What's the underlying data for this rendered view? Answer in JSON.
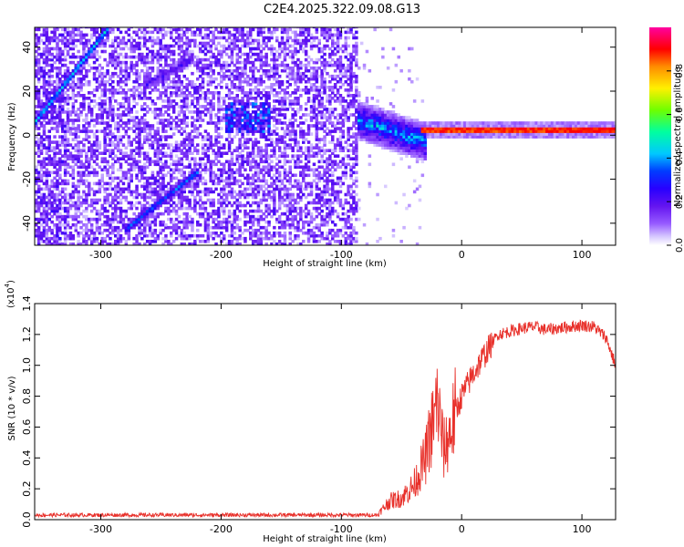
{
  "title": "C2E4.2025.322.09.08.G13",
  "chart_data": [
    {
      "type": "heatmap",
      "title": "C2E4.2025.322.09.08.G13",
      "xlabel": "Height of straight line (km)",
      "ylabel": "Frequency (Hz)",
      "xlim": [
        -355,
        128
      ],
      "ylim": [
        -50,
        49
      ],
      "xticks": [
        -300,
        -200,
        -100,
        0,
        100
      ],
      "xticklabels": [
        "-300",
        "-200",
        "-100",
        "0",
        "100"
      ],
      "yticks": [
        -40,
        -20,
        0,
        20,
        40
      ],
      "yticklabels": [
        "-40",
        "-20",
        "0",
        "20",
        "40"
      ],
      "colorbar": {
        "label": "Normalized spectral amplitude",
        "range": [
          0,
          1
        ],
        "ticks": [
          0.0,
          0.2,
          0.4,
          0.6,
          0.8
        ],
        "ticklabels": [
          "0.0",
          "0.2",
          "0.4",
          "0.6",
          "0.8"
        ],
        "colors": [
          "#ffffff",
          "#c6b3ff",
          "#7a2cff",
          "#3a00ff",
          "#0000ff",
          "#00c8ff",
          "#00ff80",
          "#80ff00",
          "#ffff00",
          "#ff8000",
          "#ff0000",
          "#ff00a0"
        ]
      },
      "features": [
        {
          "name": "steady signal line",
          "x": [
            -30,
            128
          ],
          "freq": 2,
          "amplitude": 0.95
        },
        {
          "name": "transition band",
          "x": [
            -85,
            -30
          ],
          "freq_range": [
            -8,
            12
          ],
          "amplitude": 0.4
        },
        {
          "name": "diagonal streak upper",
          "x": [
            -355,
            -295
          ],
          "freq": [
            6,
            48
          ],
          "amplitude": 0.4
        },
        {
          "name": "diagonal streak lower",
          "x": [
            -282,
            -220
          ],
          "freq": [
            -44,
            -17
          ],
          "amplitude": 0.3
        },
        {
          "name": "diagonal streak middle",
          "x": [
            -265,
            -225
          ],
          "freq": [
            22,
            34
          ],
          "amplitude": 0.15
        },
        {
          "name": "noise cluster",
          "x": [
            -198,
            -160
          ],
          "freq": [
            5,
            12
          ],
          "amplitude": 0.3
        }
      ]
    },
    {
      "type": "line",
      "xlabel": "Height of straight line (km)",
      "ylabel": "SNR (10 * v/v)",
      "scale_label": "(x10",
      "scale_exponent": "4",
      "xlim": [
        -355,
        128
      ],
      "ylim": [
        0,
        1.4
      ],
      "xticks": [
        -300,
        -200,
        -100,
        0,
        100
      ],
      "xticklabels": [
        "-300",
        "-200",
        "-100",
        "0",
        "100"
      ],
      "yticks": [
        0.0,
        0.2,
        0.4,
        0.6,
        0.8,
        1.0,
        1.2,
        1.4
      ],
      "yticklabels": [
        "0.0",
        "0.2",
        "0.4",
        "0.6",
        "0.8",
        "1.0",
        "1.2",
        "1.4"
      ],
      "color": "#e8302a",
      "series": [
        {
          "name": "SNR",
          "x": [
            -355,
            -300,
            -200,
            -100,
            -70,
            -60,
            -50,
            -40,
            -30,
            -25,
            -20,
            -15,
            -10,
            -5,
            0,
            10,
            20,
            30,
            40,
            50,
            60,
            70,
            80,
            90,
            100,
            110,
            120,
            128
          ],
          "values": [
            0.03,
            0.03,
            0.03,
            0.03,
            0.03,
            0.12,
            0.14,
            0.22,
            0.4,
            0.6,
            0.75,
            0.45,
            0.55,
            0.7,
            0.8,
            0.95,
            1.08,
            1.2,
            1.22,
            1.24,
            1.25,
            1.23,
            1.24,
            1.25,
            1.26,
            1.25,
            1.18,
            1.0
          ]
        }
      ]
    }
  ]
}
